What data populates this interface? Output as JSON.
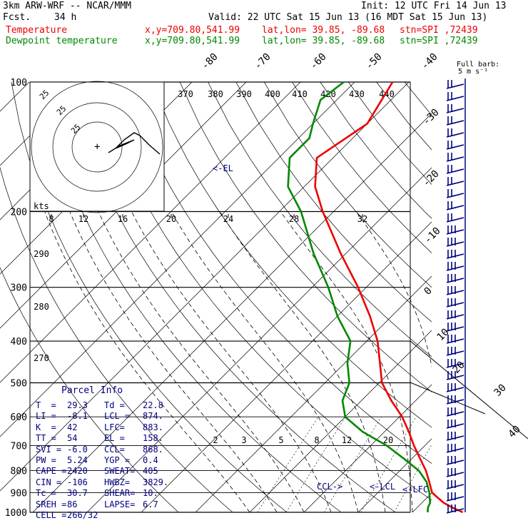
{
  "header": {
    "model": "3km ARW-WRF -- NCAR/MMM",
    "init": "Init: 12 UTC Fri 14 Jun 13",
    "fcst_label": "Fcst.",
    "fcst_value": "34 h",
    "valid": "Valid: 22 UTC Sat 15 Jun 13 (16 MDT Sat 15 Jun 13)",
    "temp_label": "Temperature",
    "dew_label": "Dewpoint temperature",
    "xy": "x,y=709.80,541.99",
    "latlon": "lat,lon= 39.85, -89.68",
    "stn": "stn=SPI ,72439",
    "colors": {
      "temperature": "#ee0000",
      "dewpoint": "#008800",
      "text": "#000000",
      "parcel": "#000080"
    }
  },
  "chart_data": {
    "type": "line",
    "title": "",
    "xlabel": "",
    "ylabel": "",
    "yscale": "log-pressure",
    "ylim": [
      1000,
      100
    ],
    "pressure_levels": [
      "100",
      "200",
      "300",
      "400",
      "500",
      "600",
      "700",
      "800",
      "900",
      "1000"
    ],
    "isotherm_labels": [
      "-80",
      "-70",
      "-60",
      "-50",
      "-40",
      "-30",
      "-20",
      "-10",
      "0",
      "10",
      "20",
      "30",
      "40"
    ],
    "theta_labels": [
      "370",
      "380",
      "390",
      "400",
      "410",
      "420",
      "430",
      "440",
      "290",
      "280",
      "270"
    ],
    "mixing_ratio_labels": [
      "2",
      "3",
      "5",
      "8",
      "12",
      "20"
    ],
    "wind_speed_labels": [
      "8",
      "12",
      "16",
      "20",
      "24",
      "28",
      "32"
    ],
    "wind_units": "kts",
    "hodo_rings": [
      "25",
      "25",
      "25"
    ],
    "barb_legend": [
      "Full barb:",
      "5 m s⁻¹"
    ],
    "series": [
      {
        "name": "Temperature",
        "color": "#ee0000",
        "points": [
          [
            1000,
            29.3
          ],
          [
            975,
            26.5
          ],
          [
            950,
            24.0
          ],
          [
            925,
            22.0
          ],
          [
            900,
            20.0
          ],
          [
            850,
            17.5
          ],
          [
            800,
            14.8
          ],
          [
            750,
            11.5
          ],
          [
            700,
            8.0
          ],
          [
            650,
            4.5
          ],
          [
            600,
            0.5
          ],
          [
            550,
            -4.5
          ],
          [
            500,
            -9.5
          ],
          [
            450,
            -13.5
          ],
          [
            400,
            -18.0
          ],
          [
            350,
            -24.0
          ],
          [
            300,
            -31.5
          ],
          [
            250,
            -41.0
          ],
          [
            200,
            -52.0
          ],
          [
            175,
            -58.0
          ],
          [
            150,
            -63.0
          ],
          [
            125,
            -60.0
          ],
          [
            100,
            -63.0
          ]
        ]
      },
      {
        "name": "Dewpoint temperature",
        "color": "#008800",
        "points": [
          [
            1000,
            22.8
          ],
          [
            975,
            22.0
          ],
          [
            950,
            21.5
          ],
          [
            925,
            20.5
          ],
          [
            900,
            19.5
          ],
          [
            850,
            17.0
          ],
          [
            800,
            13.5
          ],
          [
            750,
            8.5
          ],
          [
            700,
            3.0
          ],
          [
            650,
            -4.0
          ],
          [
            600,
            -10.0
          ],
          [
            550,
            -13.5
          ],
          [
            500,
            -15.5
          ],
          [
            450,
            -19.5
          ],
          [
            400,
            -23.0
          ],
          [
            350,
            -30.0
          ],
          [
            300,
            -37.0
          ],
          [
            250,
            -46.0
          ],
          [
            200,
            -56.0
          ],
          [
            175,
            -63.0
          ],
          [
            150,
            -68.0
          ],
          [
            135,
            -68.0
          ],
          [
            125,
            -70.0
          ],
          [
            110,
            -73.0
          ],
          [
            100,
            -72.0
          ]
        ]
      }
    ],
    "annotations": [
      "<-EL",
      "CCL->",
      "<-LCL",
      "<-LFC"
    ],
    "parcel_info": {
      "title": "Parcel Info",
      "rows": [
        [
          "T  =",
          "29.3",
          "Td =",
          "22.8"
        ],
        [
          "LI =",
          "-8.1",
          "LCL =",
          "874."
        ],
        [
          "K  =",
          "42",
          "LFC=",
          "883."
        ],
        [
          "TT =",
          "54",
          "EL =",
          "158."
        ],
        [
          "SVI =",
          "-6.0",
          "CCL=",
          "868."
        ],
        [
          "PW =",
          "5.24",
          "YGP =",
          "0.4"
        ],
        [
          "CAPE =",
          "2420",
          "SWEAT=",
          "405"
        ],
        [
          "CIN =",
          "-106",
          "HWBZ=",
          "3829."
        ],
        [
          "Tc =",
          "30.7",
          "SHEAR=",
          "10."
        ],
        [
          "SREH =",
          "86",
          "LAPSE=",
          "6.7"
        ],
        [
          "CELL =",
          "266/32",
          "",
          ""
        ]
      ]
    }
  }
}
